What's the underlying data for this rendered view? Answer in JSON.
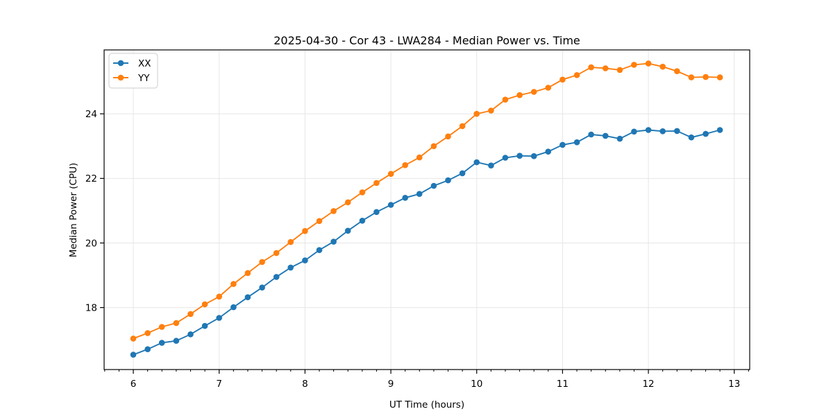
{
  "chart_data": {
    "type": "line",
    "title": "2025-04-30 - Cor 43 - LWA284 - Median Power vs. Time",
    "xlabel": "UT Time (hours)",
    "ylabel": "Median Power (CPU)",
    "xlim": [
      5.66,
      13.18
    ],
    "ylim": [
      16.08,
      25.98
    ],
    "xticks": [
      6,
      7,
      8,
      9,
      10,
      11,
      12,
      13
    ],
    "yticks": [
      18,
      20,
      22,
      24
    ],
    "x_minor_subdivisions": 6,
    "grid": true,
    "grid_color": "#e6e6e6",
    "spine_color": "#000000",
    "legend": {
      "position": "upper-left"
    },
    "x": [
      6.0,
      6.167,
      6.333,
      6.5,
      6.667,
      6.833,
      7.0,
      7.167,
      7.333,
      7.5,
      7.667,
      7.833,
      8.0,
      8.167,
      8.333,
      8.5,
      8.667,
      8.833,
      9.0,
      9.167,
      9.333,
      9.5,
      9.667,
      9.833,
      10.0,
      10.167,
      10.333,
      10.5,
      10.667,
      10.833,
      11.0,
      11.167,
      11.333,
      11.5,
      11.667,
      11.833,
      12.0,
      12.167,
      12.333,
      12.5,
      12.667,
      12.833
    ],
    "series": [
      {
        "name": "XX",
        "color": "#1f77b4",
        "values": [
          16.54,
          16.71,
          16.91,
          16.97,
          17.17,
          17.43,
          17.68,
          18.01,
          18.32,
          18.62,
          18.95,
          19.24,
          19.46,
          19.78,
          20.04,
          20.38,
          20.69,
          20.96,
          21.18,
          21.4,
          21.52,
          21.77,
          21.94,
          22.16,
          22.5,
          22.4,
          22.64,
          22.7,
          22.69,
          22.83,
          23.04,
          23.12,
          23.36,
          23.32,
          23.23,
          23.45,
          23.5,
          23.46,
          23.47,
          23.27,
          23.38,
          23.5
        ]
      },
      {
        "name": "YY",
        "color": "#ff7f0e",
        "values": [
          17.04,
          17.21,
          17.4,
          17.52,
          17.8,
          18.1,
          18.34,
          18.73,
          19.07,
          19.41,
          19.69,
          20.03,
          20.37,
          20.68,
          20.99,
          21.26,
          21.57,
          21.86,
          22.14,
          22.41,
          22.65,
          23.0,
          23.3,
          23.62,
          24.0,
          24.1,
          24.44,
          24.58,
          24.68,
          24.81,
          25.06,
          25.2,
          25.44,
          25.41,
          25.36,
          25.52,
          25.56,
          25.46,
          25.32,
          25.13,
          25.14,
          25.13
        ]
      }
    ]
  }
}
